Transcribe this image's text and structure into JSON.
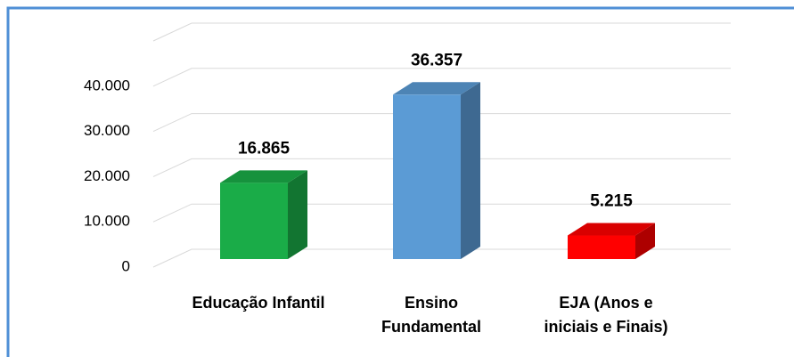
{
  "chart_data": {
    "type": "bar3d",
    "categories": [
      [
        "Educação Infantil"
      ],
      [
        "Ensino",
        "Fundamental"
      ],
      [
        "EJA (Anos e",
        "iniciais e Finais)"
      ]
    ],
    "values": [
      16865,
      36357,
      5215
    ],
    "value_labels": [
      "16.865",
      "36.357",
      "5.215"
    ],
    "colors": [
      "#1aac48",
      "#5b9bd5",
      "#ff0000"
    ],
    "ylim": [
      0,
      50000
    ],
    "yticks": [
      0,
      {
        "value": 10000,
        "label": "10.000"
      },
      {
        "value": 20000,
        "label": "20.000"
      },
      {
        "value": 30000,
        "label": "30.000"
      },
      {
        "value": 40000,
        "label": "40.000"
      }
    ],
    "grid": true
  }
}
